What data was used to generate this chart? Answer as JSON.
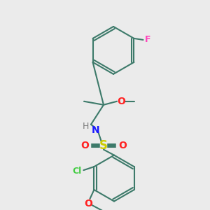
{
  "bg_color": "#ebebeb",
  "bond_color": "#3d7a6a",
  "colors": {
    "N": "#1a1aff",
    "O": "#ff2222",
    "S": "#cccc00",
    "F": "#ff44bb",
    "Cl": "#44cc44",
    "H": "#7a7a7a",
    "C": "#000000"
  },
  "figsize": [
    3.0,
    3.0
  ],
  "dpi": 100
}
